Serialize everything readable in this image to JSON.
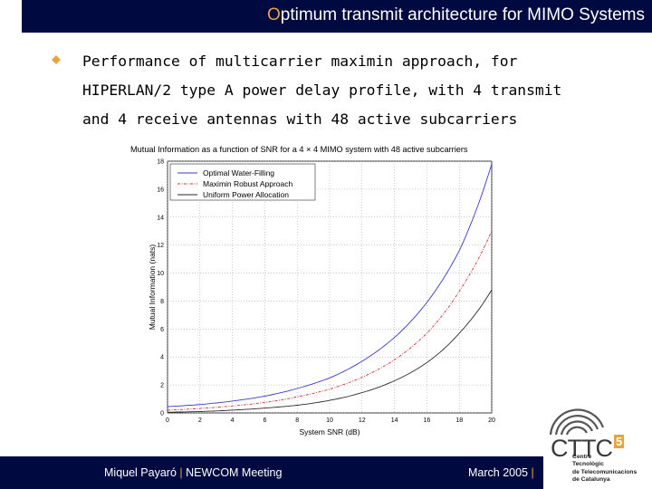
{
  "slide": {
    "title_first": "O",
    "title_rest": "ptimum transmit architecture for MIMO Systems",
    "bullet_lines": [
      "Performance of multicarrier maximin approach, for",
      "HIPERLAN/2 type A power delay profile, with 4 transmit",
      "and 4 receive antennas with 48 active subcarriers"
    ]
  },
  "footer": {
    "author": "Miquel Payaró",
    "separator": "|",
    "event": "NEWCOM Meeting",
    "date": "March 2005"
  },
  "logo": {
    "name": "CTTC",
    "superscript": "5",
    "subtitle_lines": [
      "Centre",
      "Tecnològic",
      "de Telecomunicacions",
      "de Catalunya"
    ]
  },
  "colors": {
    "bar": "#000a40",
    "accent": "#e8a33d",
    "series_water": "#3a3ad0",
    "series_maximin": "#d23030",
    "series_uniform": "#2a2a2a"
  },
  "chart_data": {
    "type": "line",
    "title": "Mutual Information as a function of SNR for a 4 × 4 MIMO system with 48 active subcarriers",
    "xlabel": "System SNR (dB)",
    "ylabel": "Mutual Information (nats)",
    "xlim": [
      0,
      20
    ],
    "ylim": [
      0,
      18
    ],
    "xticks": [
      0,
      2,
      4,
      6,
      8,
      10,
      12,
      14,
      16,
      18,
      20
    ],
    "yticks": [
      0,
      2,
      4,
      6,
      8,
      10,
      12,
      14,
      16,
      18
    ],
    "grid": true,
    "legend_position": "top-left",
    "x": [
      0,
      2,
      4,
      6,
      8,
      10,
      12,
      14,
      16,
      18,
      20
    ],
    "series": [
      {
        "name": "Optimal Water-Filling",
        "color": "#3a3ad0",
        "style": "solid",
        "values": [
          0.45,
          0.6,
          0.85,
          1.2,
          1.75,
          2.5,
          3.7,
          5.4,
          7.9,
          11.6,
          17.8
        ]
      },
      {
        "name": "Maximin Robust Approach",
        "color": "#d23030",
        "style": "dashdot",
        "values": [
          0.2,
          0.32,
          0.5,
          0.75,
          1.15,
          1.7,
          2.55,
          3.8,
          5.7,
          8.7,
          13.0
        ]
      },
      {
        "name": "Uniform Power Allocation",
        "color": "#2a2a2a",
        "style": "solid",
        "values": [
          0.05,
          0.1,
          0.2,
          0.35,
          0.55,
          0.9,
          1.45,
          2.3,
          3.6,
          5.7,
          8.8
        ]
      }
    ]
  }
}
